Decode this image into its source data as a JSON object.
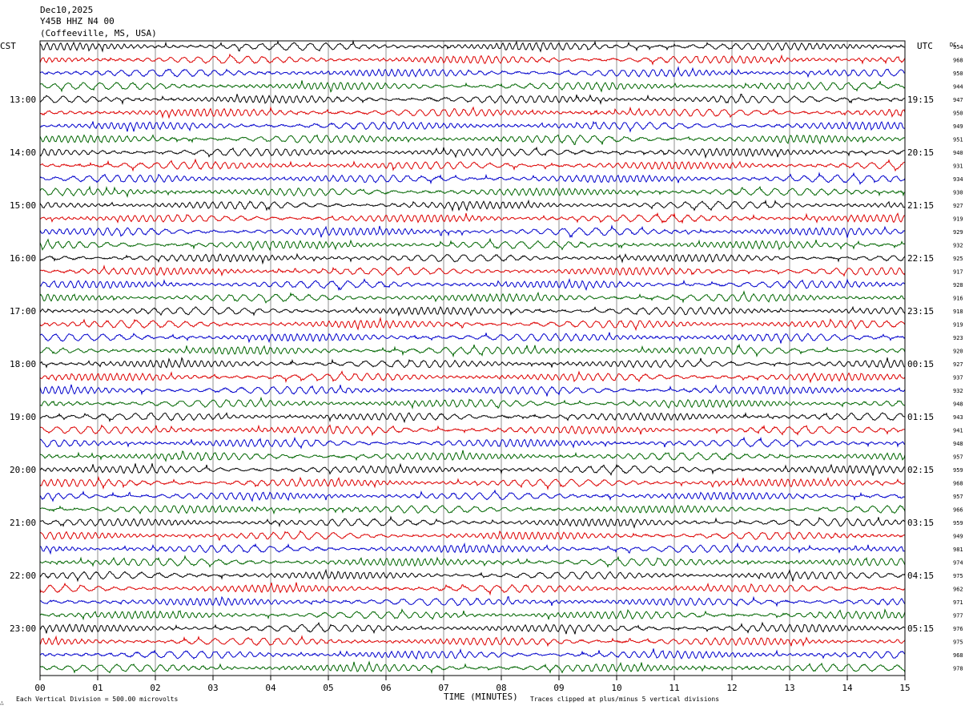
{
  "header": {
    "date": "Dec10,2025",
    "channel": "Y45B HHZ N4 00",
    "location": "(Coffeeville, MS, USA)"
  },
  "labels": {
    "left_tz": "CST",
    "right_tz": "UTC",
    "dc_header": "DC",
    "xlabel": "TIME (MINUTES)",
    "scale_note": "Each Vertical Division =  500.00 microvolts",
    "clip_note": "Traces clipped at plus/minus 5 vertical divisions",
    "corner_mark": "∴"
  },
  "chart_data": {
    "type": "line",
    "xlim": [
      0,
      15
    ],
    "x_ticks": [
      "00",
      "01",
      "02",
      "03",
      "04",
      "05",
      "06",
      "07",
      "08",
      "09",
      "10",
      "11",
      "12",
      "13",
      "14",
      "15"
    ],
    "left_hour_labels": [
      "13:00",
      "14:00",
      "15:00",
      "16:00",
      "17:00",
      "18:00",
      "19:00",
      "20:00",
      "21:00",
      "22:00",
      "23:00"
    ],
    "right_hour_labels": [
      "19:15",
      "20:15",
      "21:15",
      "22:15",
      "23:15",
      "00:15",
      "01:15",
      "02:15",
      "03:15",
      "04:15",
      "05:15"
    ],
    "dc_offsets": [
      954,
      968,
      950,
      944,
      947,
      950,
      949,
      951,
      940,
      931,
      934,
      930,
      927,
      919,
      929,
      932,
      925,
      917,
      928,
      916,
      918,
      919,
      923,
      920,
      927,
      937,
      932,
      948,
      943,
      941,
      948,
      957,
      959,
      968,
      957,
      966,
      959,
      949,
      981,
      974,
      975,
      962,
      971,
      977,
      976,
      975,
      968,
      978
    ],
    "trace_colors": [
      "#000000",
      "#dd0000",
      "#0000cc",
      "#006600"
    ],
    "vertical_grid": true
  }
}
